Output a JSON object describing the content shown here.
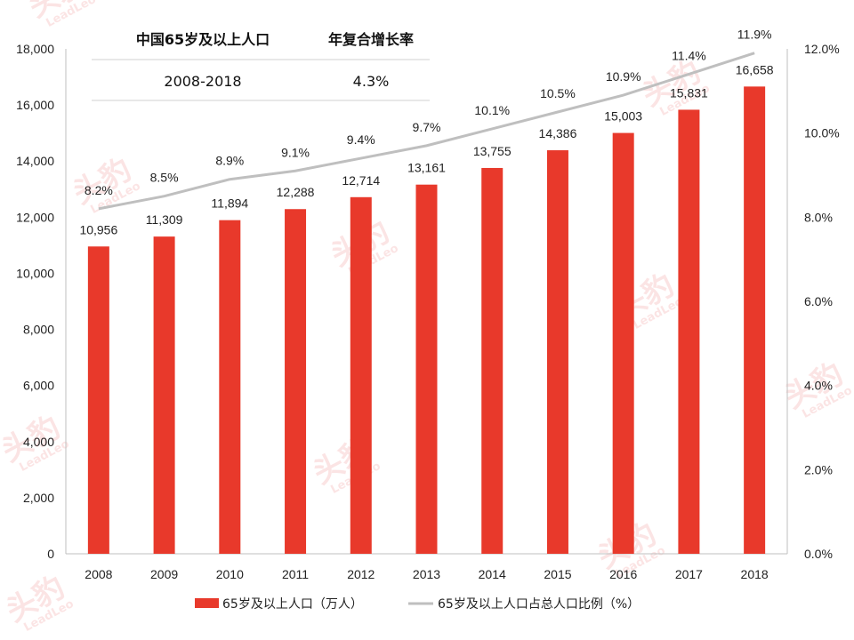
{
  "watermark": {
    "cn": "头豹",
    "en": "LeadLeo"
  },
  "cagr_table": {
    "col1_header": "中国65岁及以上人口",
    "col2_header": "年复合增长率",
    "period": "2008-2018",
    "rate": "4.3%"
  },
  "legend": {
    "bar_label": "65岁及以上人口（万人）",
    "line_label": "65岁及以上人口占总人口比例（%）"
  },
  "colors": {
    "bar": "#e8392b",
    "line": "#bfbfbf",
    "axis": "#bfbfbf"
  },
  "chart_data": {
    "type": "bar",
    "categories": [
      "2008",
      "2009",
      "2010",
      "2011",
      "2012",
      "2013",
      "2014",
      "2015",
      "2016",
      "2017",
      "2018"
    ],
    "series": [
      {
        "name": "65岁及以上人口（万人）",
        "type": "bar",
        "axis": "left",
        "values": [
          10956,
          11309,
          11894,
          12288,
          12714,
          13161,
          13755,
          14386,
          15003,
          15831,
          16658
        ],
        "labels": [
          "10,956",
          "11,309",
          "11,894",
          "12,288",
          "12,714",
          "13,161",
          "13,755",
          "14,386",
          "15,003",
          "15,831",
          "16,658"
        ]
      },
      {
        "name": "65岁及以上人口占总人口比例（%）",
        "type": "line",
        "axis": "right",
        "values": [
          8.2,
          8.5,
          8.9,
          9.1,
          9.4,
          9.7,
          10.1,
          10.5,
          10.9,
          11.4,
          11.9
        ],
        "labels": [
          "8.2%",
          "8.5%",
          "8.9%",
          "9.1%",
          "9.4%",
          "9.7%",
          "10.1%",
          "10.5%",
          "10.9%",
          "11.4%",
          "11.9%"
        ]
      }
    ],
    "y_left": {
      "lim": [
        0,
        18000
      ],
      "ticks": [
        0,
        2000,
        4000,
        6000,
        8000,
        10000,
        12000,
        14000,
        16000,
        18000
      ],
      "tick_labels": [
        "0",
        "2,000",
        "4,000",
        "6,000",
        "8,000",
        "10,000",
        "12,000",
        "14,000",
        "16,000",
        "18,000"
      ]
    },
    "y_right": {
      "lim": [
        0,
        12
      ],
      "ticks": [
        0,
        2,
        4,
        6,
        8,
        10,
        12
      ],
      "tick_labels": [
        "0.0%",
        "2.0%",
        "4.0%",
        "6.0%",
        "8.0%",
        "10.0%",
        "12.0%"
      ]
    },
    "grid": false,
    "legend_position": "bottom"
  }
}
